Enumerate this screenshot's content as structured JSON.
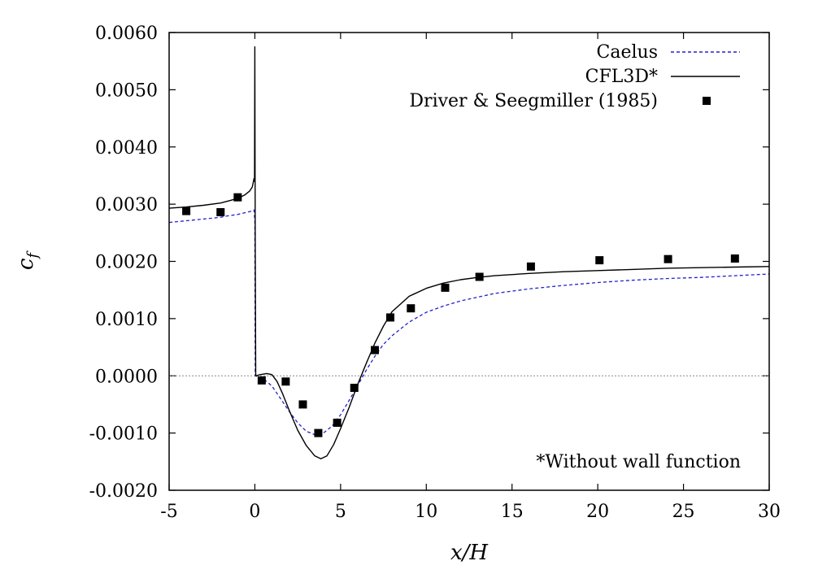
{
  "chart_data": {
    "type": "line",
    "title": "",
    "xlabel": "x/H",
    "ylabel": "c_f",
    "xlim": [
      -5,
      30
    ],
    "ylim": [
      -0.002,
      0.006
    ],
    "x_ticks": [
      -5,
      0,
      5,
      10,
      15,
      20,
      25,
      30
    ],
    "x_tick_labels": [
      "-5",
      "0",
      "5",
      "10",
      "15",
      "20",
      "25",
      "30"
    ],
    "y_ticks": [
      -0.002,
      -0.001,
      0.0,
      0.001,
      0.002,
      0.003,
      0.004,
      0.005,
      0.006
    ],
    "y_tick_labels": [
      "-0.0020",
      "-0.0010",
      "0.0000",
      "0.0010",
      "0.0020",
      "0.0030",
      "0.0040",
      "0.0050",
      "0.0060"
    ],
    "grid": false,
    "zero_line": true,
    "legend_position": "top-right",
    "annotation": "*Without wall function",
    "series": [
      {
        "name": "Caelus",
        "style": "dashed",
        "color": "#2222cc",
        "x": [
          -5,
          -4,
          -3,
          -2,
          -1.5,
          -1,
          -0.6,
          -0.3,
          -0.05,
          0.0,
          0.02,
          0.5,
          1.0,
          1.5,
          2.0,
          2.5,
          3.0,
          3.5,
          4.0,
          4.5,
          5.0,
          5.5,
          6.0,
          6.5,
          7.0,
          7.5,
          8.0,
          9.0,
          10.0,
          11.0,
          12.0,
          14.0,
          16.0,
          18.0,
          20.0,
          22.0,
          24.0,
          26.0,
          28.0,
          30.0
        ],
        "y": [
          0.00268,
          0.00271,
          0.00274,
          0.00277,
          0.0028,
          0.00282,
          0.00285,
          0.00287,
          0.0029,
          0.0027,
          0.0,
          -5e-05,
          -0.00018,
          -0.0004,
          -0.00062,
          -0.00082,
          -0.00097,
          -0.00103,
          -0.001,
          -0.00088,
          -0.00068,
          -0.00043,
          -0.00017,
          0.0001,
          0.00034,
          0.00055,
          0.0007,
          0.00094,
          0.00111,
          0.00122,
          0.00131,
          0.00144,
          0.00152,
          0.00158,
          0.00163,
          0.00167,
          0.0017,
          0.00172,
          0.00175,
          0.00178
        ]
      },
      {
        "name": "CFL3D*",
        "style": "solid",
        "color": "#000000",
        "x": [
          -5,
          -4,
          -3,
          -2,
          -1.5,
          -1,
          -0.6,
          -0.3,
          -0.15,
          -0.05,
          -0.02,
          0.0,
          0.02,
          0.05,
          0.3,
          0.7,
          1.0,
          1.3,
          1.6,
          2.0,
          2.5,
          3.0,
          3.5,
          3.85,
          4.2,
          4.6,
          5.0,
          5.5,
          6.0,
          6.5,
          7.0,
          7.5,
          8.0,
          9.0,
          10.0,
          11.0,
          12.0,
          13.0,
          14.0,
          16.0,
          18.0,
          20.0,
          22.0,
          24.0,
          26.0,
          28.0,
          30.0
        ],
        "y": [
          0.00293,
          0.00295,
          0.00298,
          0.00302,
          0.00306,
          0.0031,
          0.00316,
          0.00323,
          0.0033,
          0.00345,
          0.0034,
          0.00575,
          0.0023,
          0.0,
          2e-05,
          4e-05,
          2e-05,
          -0.0001,
          -0.0003,
          -0.0006,
          -0.00095,
          -0.00122,
          -0.0014,
          -0.00145,
          -0.0014,
          -0.0012,
          -0.00092,
          -0.00055,
          -0.00015,
          0.00022,
          0.00057,
          0.00087,
          0.00112,
          0.00139,
          0.00153,
          0.00162,
          0.00168,
          0.00172,
          0.00175,
          0.00179,
          0.00182,
          0.00184,
          0.00186,
          0.00188,
          0.00189,
          0.0019,
          0.00191
        ]
      },
      {
        "name": "Driver & Seegmiller (1985)",
        "style": "markers",
        "color": "#000000",
        "x": [
          -4.0,
          -2.0,
          -1.0,
          0.4,
          1.8,
          2.8,
          3.7,
          4.8,
          5.8,
          7.0,
          7.9,
          9.1,
          11.1,
          13.1,
          16.1,
          20.1,
          24.1,
          28.0
        ],
        "y": [
          0.00288,
          0.00286,
          0.00312,
          -8e-05,
          -0.0001,
          -0.0005,
          -0.001,
          -0.00082,
          -0.00021,
          0.00045,
          0.00102,
          0.00118,
          0.00154,
          0.00173,
          0.00191,
          0.00202,
          0.00204,
          0.00205
        ]
      }
    ]
  }
}
